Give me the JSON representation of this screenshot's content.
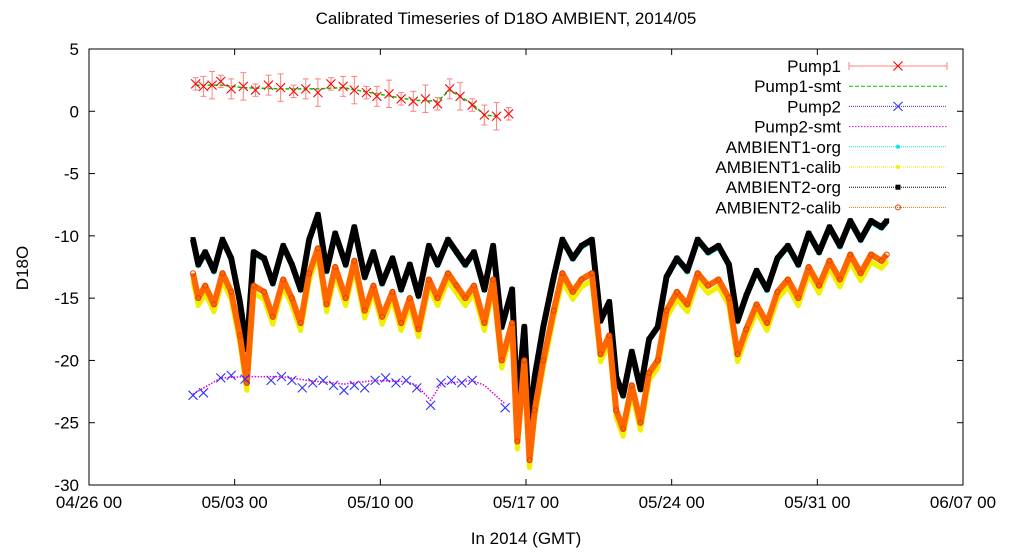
{
  "chart_data": {
    "type": "line",
    "title": "Calibrated Timeseries of D18O AMBIENT, 2014/05",
    "xlabel": "In 2014 (GMT)",
    "ylabel": "D18O",
    "xlim": [
      "2014-04-26 00:00",
      "2014-06-07 00:00"
    ],
    "ylim": [
      -30,
      5
    ],
    "x_ticks": [
      "04/26 00",
      "05/03 00",
      "05/10 00",
      "05/17 00",
      "05/24 00",
      "05/31 00",
      "06/07 00"
    ],
    "y_ticks": [
      "5",
      "0",
      "-5",
      "-10",
      "-15",
      "-20",
      "-25",
      "-30"
    ],
    "legend_position": "top-right",
    "series": [
      {
        "name": "Pump1",
        "color": "#ff0000",
        "marker": "x",
        "error_bars": true,
        "points": [
          [
            "2014-05-01 03:00",
            2.2
          ],
          [
            "2014-05-01 12:00",
            2.0
          ],
          [
            "2014-05-01 22:00",
            2.1
          ],
          [
            "2014-05-02 08:00",
            2.4
          ],
          [
            "2014-05-02 20:00",
            1.8
          ],
          [
            "2014-05-03 10:00",
            2.0
          ],
          [
            "2014-05-04 00:00",
            1.7
          ],
          [
            "2014-05-04 15:00",
            2.1
          ],
          [
            "2014-05-05 05:00",
            1.9
          ],
          [
            "2014-05-05 20:00",
            1.6
          ],
          [
            "2014-05-06 10:00",
            1.8
          ],
          [
            "2014-05-07 00:00",
            1.5
          ],
          [
            "2014-05-07 15:00",
            2.2
          ],
          [
            "2014-05-08 05:00",
            2.0
          ],
          [
            "2014-05-08 18:00",
            1.7
          ],
          [
            "2014-05-09 08:00",
            1.5
          ],
          [
            "2014-05-09 20:00",
            1.2
          ],
          [
            "2014-05-10 10:00",
            1.4
          ],
          [
            "2014-05-11 00:00",
            1.0
          ],
          [
            "2014-05-11 14:00",
            0.8
          ],
          [
            "2014-05-12 04:00",
            1.0
          ],
          [
            "2014-05-12 18:00",
            0.6
          ],
          [
            "2014-05-13 08:00",
            1.8
          ],
          [
            "2014-05-13 20:00",
            1.2
          ],
          [
            "2014-05-14 10:00",
            0.5
          ],
          [
            "2014-05-15 00:00",
            -0.3
          ],
          [
            "2014-05-15 14:00",
            -0.4
          ],
          [
            "2014-05-16 04:00",
            -0.2
          ]
        ]
      },
      {
        "name": "Pump1-smt",
        "color": "#00c000",
        "style": "dashed",
        "points": [
          [
            "2014-05-01 03:00",
            2.1
          ],
          [
            "2014-05-02 08:00",
            2.1
          ],
          [
            "2014-05-03 10:00",
            1.9
          ],
          [
            "2014-05-05 05:00",
            1.8
          ],
          [
            "2014-05-07 00:00",
            1.8
          ],
          [
            "2014-05-08 05:00",
            1.9
          ],
          [
            "2014-05-09 20:00",
            1.4
          ],
          [
            "2014-05-11 14:00",
            0.9
          ],
          [
            "2014-05-12 18:00",
            0.8
          ],
          [
            "2014-05-13 08:00",
            1.7
          ],
          [
            "2014-05-14 10:00",
            0.6
          ],
          [
            "2014-05-15 00:00",
            -0.3
          ],
          [
            "2014-05-15 14:00",
            -0.4
          ]
        ]
      },
      {
        "name": "Pump2",
        "color": "#3030ff",
        "marker": "x",
        "error_bars": false,
        "points": [
          [
            "2014-05-01 00:00",
            -22.8
          ],
          [
            "2014-05-01 12:00",
            -22.6
          ],
          [
            "2014-05-02 08:00",
            -21.4
          ],
          [
            "2014-05-02 20:00",
            -21.2
          ],
          [
            "2014-05-03 12:00",
            -21.5
          ],
          [
            "2014-05-04 18:00",
            -21.6
          ],
          [
            "2014-05-05 06:00",
            -21.3
          ],
          [
            "2014-05-05 18:00",
            -21.6
          ],
          [
            "2014-05-06 06:00",
            -22.2
          ],
          [
            "2014-05-06 18:00",
            -21.8
          ],
          [
            "2014-05-07 06:00",
            -21.6
          ],
          [
            "2014-05-07 18:00",
            -22.0
          ],
          [
            "2014-05-08 06:00",
            -22.4
          ],
          [
            "2014-05-08 18:00",
            -22.0
          ],
          [
            "2014-05-09 06:00",
            -22.2
          ],
          [
            "2014-05-09 18:00",
            -21.6
          ],
          [
            "2014-05-10 06:00",
            -21.4
          ],
          [
            "2014-05-10 18:00",
            -21.8
          ],
          [
            "2014-05-11 06:00",
            -21.6
          ],
          [
            "2014-05-11 18:00",
            -22.2
          ],
          [
            "2014-05-12 10:00",
            -23.6
          ],
          [
            "2014-05-12 22:00",
            -21.8
          ],
          [
            "2014-05-13 10:00",
            -21.6
          ],
          [
            "2014-05-13 22:00",
            -21.8
          ],
          [
            "2014-05-14 10:00",
            -21.6
          ],
          [
            "2014-05-16 00:00",
            -23.8
          ]
        ]
      },
      {
        "name": "Pump2-smt",
        "color": "#e000e0",
        "style": "dotted",
        "points": [
          [
            "2014-05-01 00:00",
            -22.7
          ],
          [
            "2014-05-02 08:00",
            -21.4
          ],
          [
            "2014-05-03 12:00",
            -21.3
          ],
          [
            "2014-05-05 06:00",
            -21.3
          ],
          [
            "2014-05-06 12:00",
            -21.6
          ],
          [
            "2014-05-08 06:00",
            -21.9
          ],
          [
            "2014-05-09 18:00",
            -21.6
          ],
          [
            "2014-05-11 06:00",
            -21.7
          ],
          [
            "2014-05-11 18:00",
            -22.0
          ],
          [
            "2014-05-12 10:00",
            -23.2
          ],
          [
            "2014-05-12 22:00",
            -21.9
          ],
          [
            "2014-05-14 10:00",
            -21.6
          ],
          [
            "2014-05-15 00:00",
            -22.0
          ],
          [
            "2014-05-16 00:00",
            -23.5
          ]
        ]
      },
      {
        "name": "AMBIENT1-org",
        "color": "#00e8e8",
        "offset_from_calib": 2.6
      },
      {
        "name": "AMBIENT1-calib",
        "color": "#f0f000",
        "offset_from_calib": -0.6
      },
      {
        "name": "AMBIENT2-org",
        "color": "#000000",
        "offset_from_calib": 2.7
      },
      {
        "name": "AMBIENT2-calib",
        "color": "#ff6600",
        "points": [
          [
            "2014-05-01 00:00",
            -13.0
          ],
          [
            "2014-05-01 06:00",
            -15.0
          ],
          [
            "2014-05-01 14:00",
            -14.0
          ],
          [
            "2014-05-02 00:00",
            -15.5
          ],
          [
            "2014-05-02 10:00",
            -13.0
          ],
          [
            "2014-05-02 20:00",
            -14.5
          ],
          [
            "2014-05-03 06:00",
            -18.0
          ],
          [
            "2014-05-03 14:00",
            -21.8
          ],
          [
            "2014-05-03 22:00",
            -14.0
          ],
          [
            "2014-05-04 10:00",
            -14.5
          ],
          [
            "2014-05-04 20:00",
            -16.5
          ],
          [
            "2014-05-05 08:00",
            -13.5
          ],
          [
            "2014-05-05 18:00",
            -15.0
          ],
          [
            "2014-05-06 04:00",
            -17.0
          ],
          [
            "2014-05-06 14:00",
            -13.0
          ],
          [
            "2014-05-07 00:00",
            -11.0
          ],
          [
            "2014-05-07 10:00",
            -15.5
          ],
          [
            "2014-05-07 20:00",
            -12.5
          ],
          [
            "2014-05-08 08:00",
            -15.0
          ],
          [
            "2014-05-08 18:00",
            -12.0
          ],
          [
            "2014-05-09 06:00",
            -16.0
          ],
          [
            "2014-05-09 16:00",
            -14.0
          ],
          [
            "2014-05-10 02:00",
            -16.5
          ],
          [
            "2014-05-10 14:00",
            -14.5
          ],
          [
            "2014-05-11 00:00",
            -17.0
          ],
          [
            "2014-05-11 10:00",
            -15.0
          ],
          [
            "2014-05-11 20:00",
            -17.5
          ],
          [
            "2014-05-12 08:00",
            -13.5
          ],
          [
            "2014-05-12 18:00",
            -15.0
          ],
          [
            "2014-05-13 06:00",
            -13.0
          ],
          [
            "2014-05-13 16:00",
            -14.0
          ],
          [
            "2014-05-14 02:00",
            -15.0
          ],
          [
            "2014-05-14 12:00",
            -14.0
          ],
          [
            "2014-05-15 00:00",
            -17.0
          ],
          [
            "2014-05-15 10:00",
            -13.5
          ],
          [
            "2014-05-15 20:00",
            -20.0
          ],
          [
            "2014-05-16 08:00",
            -17.0
          ],
          [
            "2014-05-16 14:00",
            -26.5
          ],
          [
            "2014-05-16 22:00",
            -20.0
          ],
          [
            "2014-05-17 04:00",
            -28.0
          ],
          [
            "2014-05-17 10:00",
            -24.0
          ],
          [
            "2014-05-17 20:00",
            -20.0
          ],
          [
            "2014-05-18 08:00",
            -16.0
          ],
          [
            "2014-05-18 18:00",
            -13.0
          ],
          [
            "2014-05-19 06:00",
            -14.5
          ],
          [
            "2014-05-19 16:00",
            -13.5
          ],
          [
            "2014-05-20 04:00",
            -13.0
          ],
          [
            "2014-05-20 14:00",
            -19.5
          ],
          [
            "2014-05-21 00:00",
            -18.0
          ],
          [
            "2014-05-21 08:00",
            -24.0
          ],
          [
            "2014-05-21 16:00",
            -25.5
          ],
          [
            "2014-05-22 02:00",
            -22.0
          ],
          [
            "2014-05-22 12:00",
            -25.0
          ],
          [
            "2014-05-22 22:00",
            -21.0
          ],
          [
            "2014-05-23 08:00",
            -20.0
          ],
          [
            "2014-05-23 18:00",
            -16.0
          ],
          [
            "2014-05-24 06:00",
            -14.5
          ],
          [
            "2014-05-24 18:00",
            -15.5
          ],
          [
            "2014-05-25 06:00",
            -13.0
          ],
          [
            "2014-05-25 18:00",
            -14.0
          ],
          [
            "2014-05-26 06:00",
            -13.5
          ],
          [
            "2014-05-26 18:00",
            -15.0
          ],
          [
            "2014-05-27 04:00",
            -19.5
          ],
          [
            "2014-05-27 14:00",
            -17.5
          ],
          [
            "2014-05-28 02:00",
            -15.5
          ],
          [
            "2014-05-28 14:00",
            -17.0
          ],
          [
            "2014-05-29 02:00",
            -14.5
          ],
          [
            "2014-05-29 14:00",
            -13.5
          ],
          [
            "2014-05-30 02:00",
            -15.0
          ],
          [
            "2014-05-30 14:00",
            -12.5
          ],
          [
            "2014-05-31 02:00",
            -14.0
          ],
          [
            "2014-05-31 14:00",
            -12.0
          ],
          [
            "2014-06-01 02:00",
            -13.5
          ],
          [
            "2014-06-01 14:00",
            -11.5
          ],
          [
            "2014-06-02 02:00",
            -13.0
          ],
          [
            "2014-06-02 14:00",
            -11.5
          ],
          [
            "2014-06-03 02:00",
            -12.0
          ],
          [
            "2014-06-03 08:00",
            -11.5
          ]
        ]
      }
    ]
  }
}
